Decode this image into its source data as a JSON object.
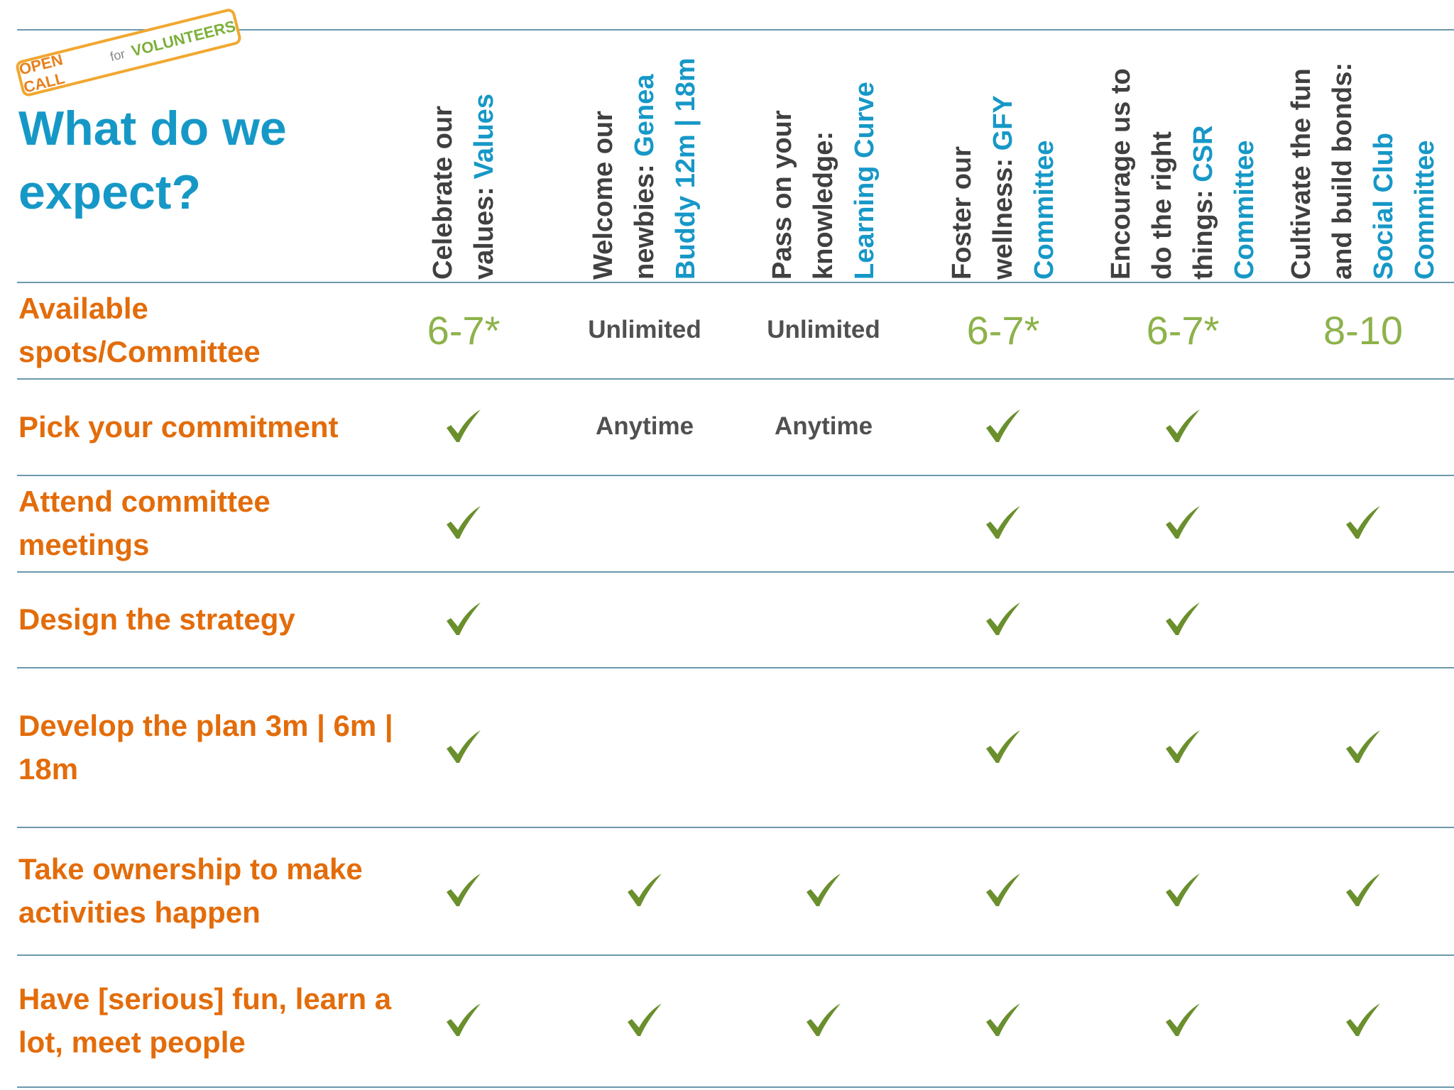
{
  "badge": {
    "open_call": "OPEN CALL",
    "for": "for",
    "volunteers": "VOLUNTEERS"
  },
  "title": "What do we expect?",
  "columns": [
    {
      "lead": "Celebrate our values:",
      "name": "Values"
    },
    {
      "lead": "Welcome our newbies:",
      "name": "Genea Buddy 12m | 18m"
    },
    {
      "lead": "Pass on your knowledge:",
      "name": "Learning Curve"
    },
    {
      "lead": "Foster our wellness:",
      "name": "GFY Committee"
    },
    {
      "lead": "Encourage us to do the right things:",
      "name": "CSR Committee"
    },
    {
      "lead": "Cultivate the fun and build bonds:",
      "name": "Social Club Committee"
    }
  ],
  "rows": [
    {
      "label": "Available spots/Committee",
      "cells": [
        "6-7*",
        "Unlimited",
        "Unlimited",
        "6-7*",
        "6-7*",
        "8-10"
      ]
    },
    {
      "label": "Pick your commitment",
      "cells": [
        true,
        "Anytime",
        "Anytime",
        true,
        true,
        null
      ]
    },
    {
      "label": "Attend committee meetings",
      "cells": [
        true,
        null,
        null,
        true,
        true,
        true
      ]
    },
    {
      "label": "Design the strategy",
      "cells": [
        true,
        null,
        null,
        true,
        true,
        null
      ]
    },
    {
      "label": "Develop the plan 3m | 6m | 18m",
      "cells": [
        true,
        null,
        null,
        true,
        true,
        true
      ]
    },
    {
      "label": "Take ownership to make activities happen",
      "cells": [
        true,
        true,
        true,
        true,
        true,
        true
      ]
    },
    {
      "label": "Have [serious] fun, learn a lot, meet people",
      "cells": [
        true,
        true,
        true,
        true,
        true,
        true
      ]
    }
  ]
}
